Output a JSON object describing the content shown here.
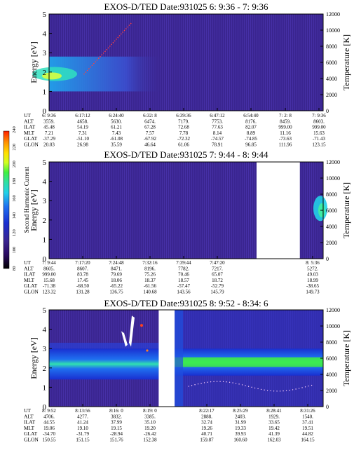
{
  "colors": {
    "background": "#3a2590",
    "noise": "#4a30a8",
    "dark": "#1a0a50",
    "colorbar": [
      "#000000",
      "#2a0a60",
      "#3a2590",
      "#1a2fd0",
      "#1f70f0",
      "#22d0e8",
      "#30e0a0",
      "#40f040",
      "#d0ff20",
      "#ffe000",
      "#ff9000",
      "#ff2000"
    ]
  },
  "colorbar": {
    "title": "Second Harmonic Current",
    "ticks": [
      "80",
      "100",
      "120",
      "140",
      "160",
      "180",
      "200",
      "220",
      "240"
    ]
  },
  "chart_data": [
    {
      "type": "heatmap",
      "title": "EXOS-D/TED   Date:931025  6: 9:36 - 7: 9:36",
      "ylabel": "Energy [eV]",
      "ylabel_right": "Temperature [K]",
      "ylim": [
        0,
        5
      ],
      "yticks": [
        "0",
        "1",
        "2",
        "3",
        "4",
        "5"
      ],
      "ylim_right": [
        0,
        12000
      ],
      "yticks_right": [
        "0",
        "2000",
        "4000",
        "6000",
        "8000",
        "10000",
        "12000"
      ],
      "row_labels": [
        "UT",
        "ALT",
        "ILAT",
        "MLT",
        "GLAT",
        "GLON"
      ],
      "columns": [
        [
          "6: 9:36",
          "3559.",
          "45.48",
          "7.21",
          "-37.29",
          "20.03"
        ],
        [
          "6:17:12",
          "4658.",
          "54.19",
          "7.31",
          "-51.10",
          "26.98"
        ],
        [
          "6:24:40",
          "5630.",
          "61.21",
          "7.43",
          "-61.08",
          "35.59"
        ],
        [
          "6:32: 8",
          "6474.",
          "67.28",
          "7.57",
          "-67.92",
          "46.64"
        ],
        [
          "6:39:36",
          "7179.",
          "72.68",
          "7.78",
          "-72.32",
          "61.06"
        ],
        [
          "6:47:12",
          "7753.",
          "77.63",
          "8.14",
          "-74.57",
          "78.91"
        ],
        [
          "6:54:40",
          "8176.",
          "82.07",
          "8.89",
          "-74.85",
          "96.85"
        ],
        [
          "7: 2: 8",
          "8459.",
          "999.00",
          "11.16",
          "-73.63",
          "111.96"
        ],
        [
          "7: 9:36",
          "8603.",
          "999.00",
          "15.63",
          "-71.43",
          "123.15"
        ]
      ]
    },
    {
      "type": "heatmap",
      "title": "EXOS-D/TED   Date:931025  7: 9:44 - 8: 9:44",
      "ylabel": "Energy [eV]",
      "ylabel_right": "Temperature [K]",
      "ylim": [
        0,
        5
      ],
      "yticks": [
        "0",
        "1",
        "2",
        "3",
        "4",
        "5"
      ],
      "ylim_right": [
        0,
        12000
      ],
      "yticks_right": [
        "0",
        "2000",
        "4000",
        "6000",
        "8000",
        "10000",
        "12000"
      ],
      "row_labels": [
        "UT",
        "ALT",
        "ILAT",
        "MLT",
        "GLAT",
        "GLON"
      ],
      "columns": [
        [
          "7: 9:44",
          "8605.",
          "999.00",
          "15.68",
          "-71.38",
          "123.32"
        ],
        [
          "7:17:20",
          "8607.",
          "83.78",
          "17.45",
          "-68.50",
          "131.28"
        ],
        [
          "7:24:48",
          "8471.",
          "79.69",
          "18.06",
          "-65.22",
          "136.75"
        ],
        [
          "7:32:16",
          "8196.",
          "75.26",
          "18.37",
          "-61.56",
          "140.68"
        ],
        [
          "7:39:44",
          "7782.",
          "70.46",
          "18.57",
          "-57.47",
          "143.56"
        ],
        [
          "7:47:20",
          "7217.",
          "65.07",
          "18.72",
          "-52.79",
          "145.79"
        ],
        [
          "8: 5:36",
          "5272.",
          "49.03",
          "18.99",
          "-38.65",
          "149.73"
        ]
      ],
      "data_gap": [
        0.757,
        0.915
      ]
    },
    {
      "type": "heatmap",
      "title": "EXOS-D/TED   Date:931025  8: 9:52 - 8:34: 6",
      "ylabel": "Energy [eV]",
      "ylabel_right": "Temperature [K]",
      "ylim": [
        0,
        5
      ],
      "yticks": [
        "0",
        "1",
        "2",
        "3",
        "4",
        "5"
      ],
      "ylim_right": [
        0,
        12000
      ],
      "yticks_right": [
        "0",
        "2000",
        "4000",
        "6000",
        "8000",
        "10000",
        "12000"
      ],
      "row_labels": [
        "UT",
        "ALT",
        "ILAT",
        "MLT",
        "GLAT",
        "GLON"
      ],
      "columns": [
        [
          "8: 9:52",
          "4706.",
          "44.55",
          "19.06",
          "-34.70",
          "150.55"
        ],
        [
          "8:13:56",
          "4277.",
          "41.24",
          "19.10",
          "-31.79",
          "151.15"
        ],
        [
          "8:16: 0",
          "3832.",
          "37.99",
          "19.15",
          "-28.94",
          "151.76"
        ],
        [
          "8:19: 0",
          "3385.",
          "35.10",
          "19.20",
          "-26.42",
          "152.38"
        ],
        [
          "8:22:17",
          "2888.",
          "32.74",
          "19.26",
          "40.71",
          "159.87"
        ],
        [
          "8:25:29",
          "2403.",
          "31.99",
          "19.33",
          "39.93",
          "160.60"
        ],
        [
          "8:28:41",
          "1929.",
          "33.65",
          "19.42",
          "41.39",
          "162.03"
        ],
        [
          "8:31:26",
          "1540.",
          "37.41",
          "19.51",
          "44.82",
          "164.15"
        ]
      ],
      "data_gap": [
        0.4,
        0.458
      ]
    }
  ]
}
